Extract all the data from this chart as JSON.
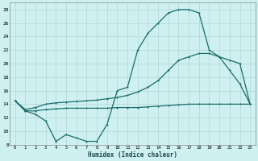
{
  "xlabel": "Humidex (Indice chaleur)",
  "bg_color": "#cff0f0",
  "grid_color": "#b8dada",
  "line_color": "#1a6b6b",
  "series1_x": [
    0,
    1,
    2,
    3,
    4,
    5,
    6,
    7,
    8,
    9,
    10,
    11,
    12,
    13,
    14,
    15,
    16,
    17,
    18,
    19,
    20,
    21,
    22,
    23
  ],
  "series1_y": [
    14.5,
    13,
    12.5,
    11.5,
    8.5,
    9.5,
    9,
    8.5,
    8.5,
    11,
    16,
    16.5,
    22,
    24.5,
    26,
    27.5,
    28,
    28,
    27.5,
    22,
    21,
    19,
    17,
    14
  ],
  "series2_x": [
    0,
    1,
    2,
    3,
    4,
    5,
    6,
    7,
    8,
    9,
    10,
    11,
    12,
    13,
    14,
    15,
    16,
    17,
    18,
    19,
    20,
    21,
    22,
    23
  ],
  "series2_y": [
    14.5,
    13.2,
    13.5,
    14,
    14.2,
    14.3,
    14.4,
    14.5,
    14.6,
    14.8,
    15.0,
    15.3,
    15.8,
    16.5,
    17.5,
    19.0,
    20.5,
    21.0,
    21.5,
    21.5,
    21.0,
    20.5,
    20.0,
    14
  ],
  "series3_x": [
    0,
    1,
    2,
    3,
    4,
    5,
    6,
    7,
    8,
    9,
    10,
    11,
    12,
    13,
    14,
    15,
    16,
    17,
    18,
    19,
    20,
    21,
    22,
    23
  ],
  "series3_y": [
    14.5,
    13.0,
    13.0,
    13.2,
    13.3,
    13.4,
    13.4,
    13.4,
    13.4,
    13.4,
    13.5,
    13.5,
    13.5,
    13.6,
    13.7,
    13.8,
    13.9,
    14.0,
    14.0,
    14.0,
    14.0,
    14.0,
    14.0,
    14.0
  ],
  "xlim": [
    0,
    23
  ],
  "ylim": [
    8,
    29
  ],
  "yticks": [
    8,
    10,
    12,
    14,
    16,
    18,
    20,
    22,
    24,
    26,
    28
  ],
  "xticks": [
    0,
    1,
    2,
    3,
    4,
    5,
    6,
    7,
    8,
    9,
    10,
    11,
    12,
    13,
    14,
    15,
    16,
    17,
    18,
    19,
    20,
    21,
    22,
    23
  ]
}
